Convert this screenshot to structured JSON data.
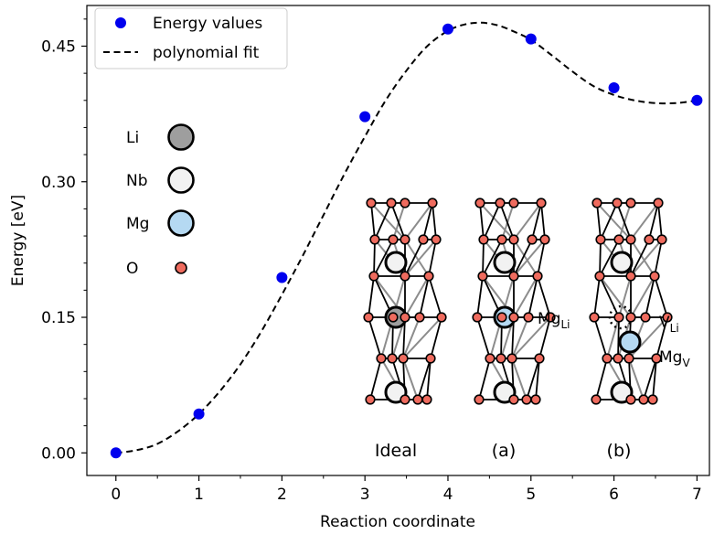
{
  "chart_data": {
    "type": "scatter",
    "title": "",
    "xlabel": "Reaction coordinate",
    "ylabel": "Energy [eV]",
    "xlim": [
      -0.35,
      7.15
    ],
    "ylim": [
      -0.025,
      0.495
    ],
    "xticks": [
      0,
      1,
      2,
      3,
      4,
      5,
      6,
      7
    ],
    "xtick_labels": [
      "0",
      "1",
      "2",
      "3",
      "4",
      "5",
      "6",
      "7"
    ],
    "yticks": [
      0.0,
      0.15,
      0.3,
      0.45
    ],
    "ytick_labels": [
      "0.00",
      "0.15",
      "0.30",
      "0.45"
    ],
    "grid": false,
    "legend_position": "top-left",
    "series": [
      {
        "name": "Energy values",
        "kind": "scatter",
        "color": "#0000ee",
        "x": [
          0,
          1,
          2,
          3,
          4,
          5,
          6,
          7
        ],
        "y": [
          0.0,
          0.043,
          0.194,
          0.372,
          0.469,
          0.458,
          0.404,
          0.39
        ]
      },
      {
        "name": "polynomial fit",
        "kind": "line",
        "style": "dashed",
        "color": "#000000",
        "x": [
          0,
          0.25,
          0.5,
          0.75,
          1,
          1.25,
          1.5,
          1.75,
          2,
          2.25,
          2.5,
          2.75,
          3,
          3.25,
          3.5,
          3.75,
          4,
          4.2,
          4.4,
          4.6,
          4.8,
          5,
          5.25,
          5.5,
          5.75,
          6,
          6.25,
          6.5,
          6.75,
          7
        ],
        "y": [
          0.0,
          0.003,
          0.01,
          0.024,
          0.043,
          0.068,
          0.098,
          0.134,
          0.175,
          0.218,
          0.263,
          0.308,
          0.35,
          0.39,
          0.423,
          0.45,
          0.467,
          0.474,
          0.476,
          0.473,
          0.466,
          0.457,
          0.44,
          0.422,
          0.406,
          0.396,
          0.39,
          0.387,
          0.387,
          0.39
        ]
      }
    ],
    "inset": {
      "species_legend": [
        {
          "label": "Li",
          "color": "#9e9e9e"
        },
        {
          "label": "Nb",
          "color": "#f2f2f2"
        },
        {
          "label": "Mg",
          "color": "#b5d9f2"
        },
        {
          "label": "O",
          "color": "#ef6b5e"
        }
      ],
      "structure_labels": [
        "Ideal",
        "(a)",
        "(b)"
      ],
      "site_labels": {
        "mg_li": "Mg",
        "mg_li_sub": "Li",
        "v_li": "V",
        "v_li_sub": "Li",
        "mg_v": "Mg",
        "mg_v_sub": "V"
      }
    }
  }
}
